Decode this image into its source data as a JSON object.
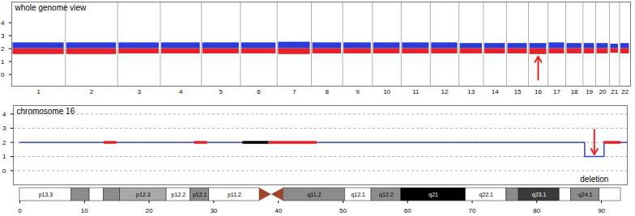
{
  "chart_data": [
    {
      "type": "scatter",
      "title": "whole genome view",
      "categories": [
        "1",
        "2",
        "3",
        "4",
        "5",
        "6",
        "7",
        "8",
        "9",
        "10",
        "11",
        "12",
        "13",
        "14",
        "15",
        "16",
        "17",
        "18",
        "19",
        "20",
        "21",
        "22"
      ],
      "lengths": [
        249,
        243,
        198,
        191,
        181,
        171,
        159,
        145,
        138,
        134,
        135,
        133,
        114,
        107,
        102,
        90,
        83,
        80,
        59,
        64,
        47,
        51
      ],
      "center": 2,
      "series": [
        {
          "color": "#2b3bd9",
          "values": [
            2.45,
            2.45,
            2.45,
            2.45,
            2.45,
            2.45,
            2.5,
            2.45,
            2.45,
            2.45,
            2.45,
            2.45,
            2.4,
            2.4,
            2.4,
            2.4,
            2.45,
            2.4,
            2.4,
            2.4,
            2.35,
            2.4
          ]
        },
        {
          "color": "#e3222b",
          "values": [
            1.55,
            1.55,
            1.6,
            1.6,
            1.6,
            1.6,
            1.55,
            1.6,
            1.6,
            1.6,
            1.6,
            1.6,
            1.6,
            1.6,
            1.6,
            1.55,
            1.6,
            1.6,
            1.6,
            1.6,
            1.65,
            1.6
          ]
        }
      ],
      "ylim": [
        -0.9,
        5.6
      ],
      "yticks": [
        0,
        1,
        2,
        3,
        4
      ],
      "grid": false,
      "arrow": {
        "category": "16",
        "y1": -0.4,
        "y2": 1.4,
        "color": "#e8261f"
      }
    },
    {
      "type": "line",
      "title": "chromosome 16",
      "x": [
        0,
        87.4,
        87.4,
        90.4,
        90.4,
        94
      ],
      "values": [
        2,
        2,
        1,
        1,
        2,
        2
      ],
      "color": "#3344cc",
      "xlim": [
        -1,
        94
      ],
      "xticks": [
        0,
        10,
        20,
        30,
        40,
        50,
        60,
        70,
        80,
        90
      ],
      "ylim": [
        -1,
        4.6
      ],
      "yticks": [
        0,
        1,
        2,
        3,
        4
      ],
      "grid": true,
      "highlights": [
        {
          "start": 13,
          "end": 15,
          "value": 2,
          "color": "#e3222b"
        },
        {
          "start": 27,
          "end": 29,
          "value": 2,
          "color": "#e3222b"
        },
        {
          "start": 34.5,
          "end": 38.5,
          "value": 2,
          "color": "#000000"
        },
        {
          "start": 38.5,
          "end": 46,
          "value": 2,
          "color": "#e3222b"
        },
        {
          "start": 90.4,
          "end": 93,
          "value": 2,
          "color": "#e3222b"
        }
      ],
      "annotation": {
        "text": "deletion",
        "x": 88.9,
        "y": -0.6,
        "arrow_y1": 2.9,
        "arrow_y2": 1.15,
        "color": "#e8261f"
      },
      "bands": [
        {
          "start": 0,
          "end": 8,
          "label": "p13.3",
          "color": "#ffffff"
        },
        {
          "start": 8,
          "end": 10.8,
          "label": null,
          "color": "#8c8c8c"
        },
        {
          "start": 10.8,
          "end": 13,
          "label": null,
          "color": "#ffffff"
        },
        {
          "start": 13,
          "end": 15.5,
          "label": null,
          "color": "#8c8c8c"
        },
        {
          "start": 15.5,
          "end": 22.7,
          "label": "p12.3",
          "color": "#a8a8a8"
        },
        {
          "start": 22.7,
          "end": 26.4,
          "label": "p12.2",
          "color": "#ffffff"
        },
        {
          "start": 26.4,
          "end": 29.3,
          "label": "p12.1",
          "color": "#8c8c8c"
        },
        {
          "start": 29.3,
          "end": 37.1,
          "label": "p11.2",
          "color": "#ffffff"
        },
        {
          "start": 37.1,
          "end": 40.8,
          "label": null,
          "type": "centromere",
          "color": "#a0452c"
        },
        {
          "start": 40.8,
          "end": 50.3,
          "label": "q11.2",
          "color": "#8c8c8c"
        },
        {
          "start": 50.3,
          "end": 54.4,
          "label": "q12.1",
          "color": "#ffffff"
        },
        {
          "start": 54.4,
          "end": 59,
          "label": "q12.2",
          "color": "#8c8c8c"
        },
        {
          "start": 59,
          "end": 69,
          "label": "q21",
          "color": "#000000"
        },
        {
          "start": 69,
          "end": 75.3,
          "label": "q22.1",
          "color": "#ffffff"
        },
        {
          "start": 75.3,
          "end": 77.2,
          "label": null,
          "color": "#8c8c8c"
        },
        {
          "start": 77.2,
          "end": 83.5,
          "label": "q23.1",
          "color": "#3a3a3a"
        },
        {
          "start": 83.5,
          "end": 85.3,
          "label": null,
          "color": "#ffffff"
        },
        {
          "start": 85.3,
          "end": 89.7,
          "label": "q24.1",
          "color": "#8c8c8c"
        },
        {
          "start": 89.7,
          "end": 93,
          "label": null,
          "color": "#ffffff"
        }
      ]
    }
  ]
}
